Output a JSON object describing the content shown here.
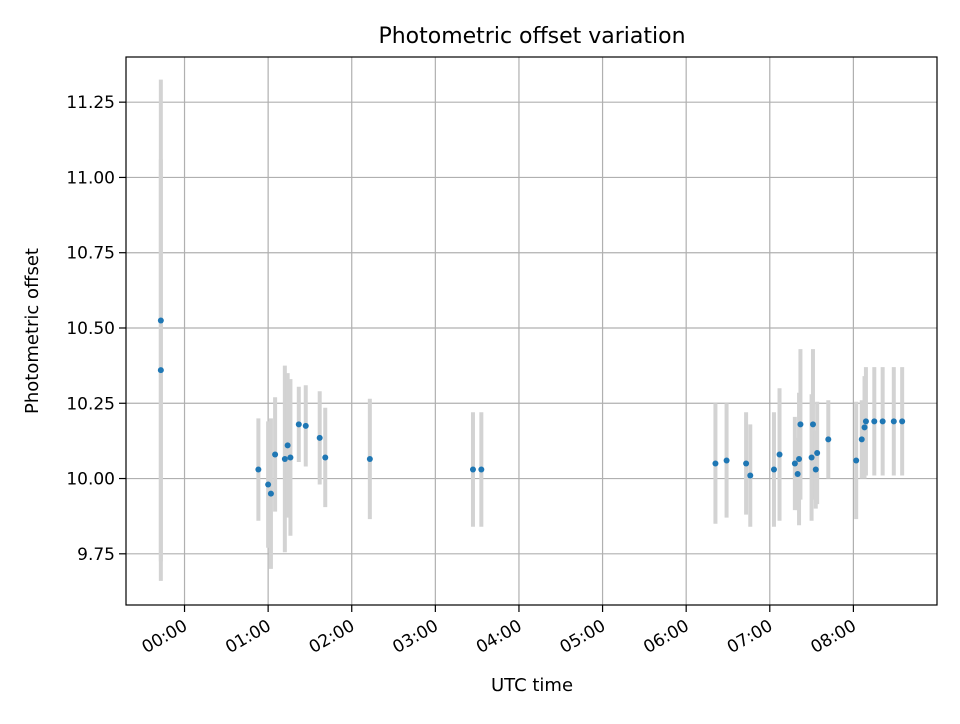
{
  "chart_data": {
    "type": "scatter",
    "title": "Photometric offset variation",
    "xlabel": "UTC time",
    "ylabel": "Photometric offset",
    "x_unit": "hours UTC",
    "xlim": [
      "-00:42",
      "09:00"
    ],
    "ylim": [
      9.58,
      11.4
    ],
    "x_ticks": [
      "00:00",
      "01:00",
      "02:00",
      "03:00",
      "04:00",
      "05:00",
      "06:00",
      "07:00",
      "08:00"
    ],
    "y_ticks": [
      "9.75",
      "10.00",
      "10.25",
      "10.50",
      "10.75",
      "11.00",
      "11.25"
    ],
    "grid": true,
    "colors": {
      "point": "#1f77b4",
      "errorbar": "#d3d3d3",
      "grid": "#b0b0b0"
    },
    "points": [
      {
        "x": "-00:17",
        "y": 10.525,
        "err": 0.8
      },
      {
        "x": "-00:17",
        "y": 10.36,
        "err": 0.7
      },
      {
        "x": "00:53",
        "y": 10.03,
        "err": 0.17
      },
      {
        "x": "01:00",
        "y": 9.98,
        "err": 0.21
      },
      {
        "x": "01:02",
        "y": 9.95,
        "err": 0.25
      },
      {
        "x": "01:05",
        "y": 10.08,
        "err": 0.19
      },
      {
        "x": "01:12",
        "y": 10.065,
        "err": 0.31
      },
      {
        "x": "01:14",
        "y": 10.11,
        "err": 0.24
      },
      {
        "x": "01:16",
        "y": 10.07,
        "err": 0.26
      },
      {
        "x": "01:22",
        "y": 10.18,
        "err": 0.125
      },
      {
        "x": "01:27",
        "y": 10.175,
        "err": 0.135
      },
      {
        "x": "01:37",
        "y": 10.135,
        "err": 0.155
      },
      {
        "x": "01:41",
        "y": 10.07,
        "err": 0.165
      },
      {
        "x": "02:13",
        "y": 10.065,
        "err": 0.2
      },
      {
        "x": "03:27",
        "y": 10.03,
        "err": 0.19
      },
      {
        "x": "03:33",
        "y": 10.03,
        "err": 0.19
      },
      {
        "x": "06:21",
        "y": 10.05,
        "err": 0.2
      },
      {
        "x": "06:29",
        "y": 10.06,
        "err": 0.19
      },
      {
        "x": "06:43",
        "y": 10.05,
        "err": 0.17
      },
      {
        "x": "06:46",
        "y": 10.01,
        "err": 0.17
      },
      {
        "x": "07:03",
        "y": 10.03,
        "err": 0.19
      },
      {
        "x": "07:07",
        "y": 10.08,
        "err": 0.22
      },
      {
        "x": "07:18",
        "y": 10.05,
        "err": 0.155
      },
      {
        "x": "07:20",
        "y": 10.015,
        "err": 0.12
      },
      {
        "x": "07:21",
        "y": 10.065,
        "err": 0.22
      },
      {
        "x": "07:22",
        "y": 10.18,
        "err": 0.25
      },
      {
        "x": "07:30",
        "y": 10.07,
        "err": 0.21
      },
      {
        "x": "07:31",
        "y": 10.18,
        "err": 0.25
      },
      {
        "x": "07:33",
        "y": 10.03,
        "err": 0.13
      },
      {
        "x": "07:34",
        "y": 10.085,
        "err": 0.17
      },
      {
        "x": "07:42",
        "y": 10.13,
        "err": 0.13
      },
      {
        "x": "08:02",
        "y": 10.06,
        "err": 0.195
      },
      {
        "x": "08:06",
        "y": 10.13,
        "err": 0.13
      },
      {
        "x": "08:08",
        "y": 10.17,
        "err": 0.17
      },
      {
        "x": "08:09",
        "y": 10.19,
        "err": 0.18
      },
      {
        "x": "08:15",
        "y": 10.19,
        "err": 0.18
      },
      {
        "x": "08:21",
        "y": 10.19,
        "err": 0.18
      },
      {
        "x": "08:29",
        "y": 10.19,
        "err": 0.18
      },
      {
        "x": "08:35",
        "y": 10.19,
        "err": 0.18
      }
    ]
  }
}
